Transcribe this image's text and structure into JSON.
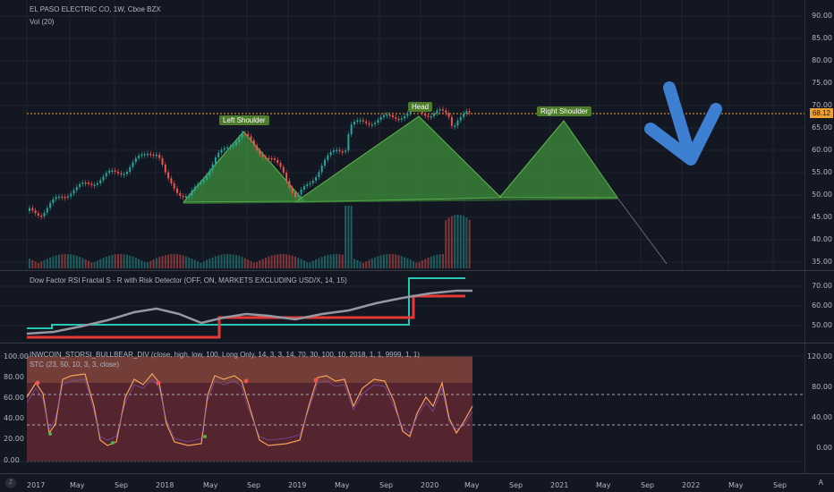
{
  "main_pane": {
    "title": "EL PASO ELECTRIC CO, 1W, Cboe BZX",
    "vol_label": "Vol (20)",
    "price_tag": "68.12",
    "y_ticks": [
      "90.00",
      "85.00",
      "80.00",
      "75.00",
      "70.00",
      "65.00",
      "60.00",
      "55.00",
      "50.00",
      "45.00",
      "40.00",
      "35.00"
    ],
    "annotations": {
      "left_shoulder": "Left Shoulder",
      "head": "Head",
      "right_shoulder": "Right Shoulder"
    },
    "colors": {
      "pattern_fill": "#3f8f3a",
      "arrow": "#3d7fd1",
      "price_line": "#f0a030",
      "up": "#26a69a",
      "down": "#ef5350"
    }
  },
  "dow_pane": {
    "title": "Dow Factor RSI Fractal S - R with Risk Detector (OFF, ON, MARKETS EXCLUDING USD/X, 14, 15)",
    "y_ticks": [
      "70.00",
      "60.00",
      "50.00"
    ]
  },
  "stc_pane": {
    "title": "INWCOIN_STORSI_BULLBEAR_DIV (close, high, low, 100, Long Only, 14, 3, 3, 14, 70, 30, 100, 10, 2018, 1, 1, 9999, 1, 1)",
    "subtitle": "STC (23, 50, 10, 3, 3, close)",
    "left_ticks": [
      "100.00",
      "80.00",
      "60.00",
      "40.00",
      "20.00",
      "0.00"
    ],
    "right_ticks": [
      "120.00",
      "80.00",
      "40.00",
      "0.00"
    ]
  },
  "time_axis": {
    "labels": [
      "2017",
      "May",
      "Sep",
      "2018",
      "May",
      "Sep",
      "2019",
      "May",
      "Sep",
      "2020",
      "May",
      "Sep",
      "2021",
      "May",
      "Sep",
      "2022",
      "May",
      "Sep"
    ]
  },
  "corner_icon": "tradingview-logo-icon",
  "auto_label": "A"
}
